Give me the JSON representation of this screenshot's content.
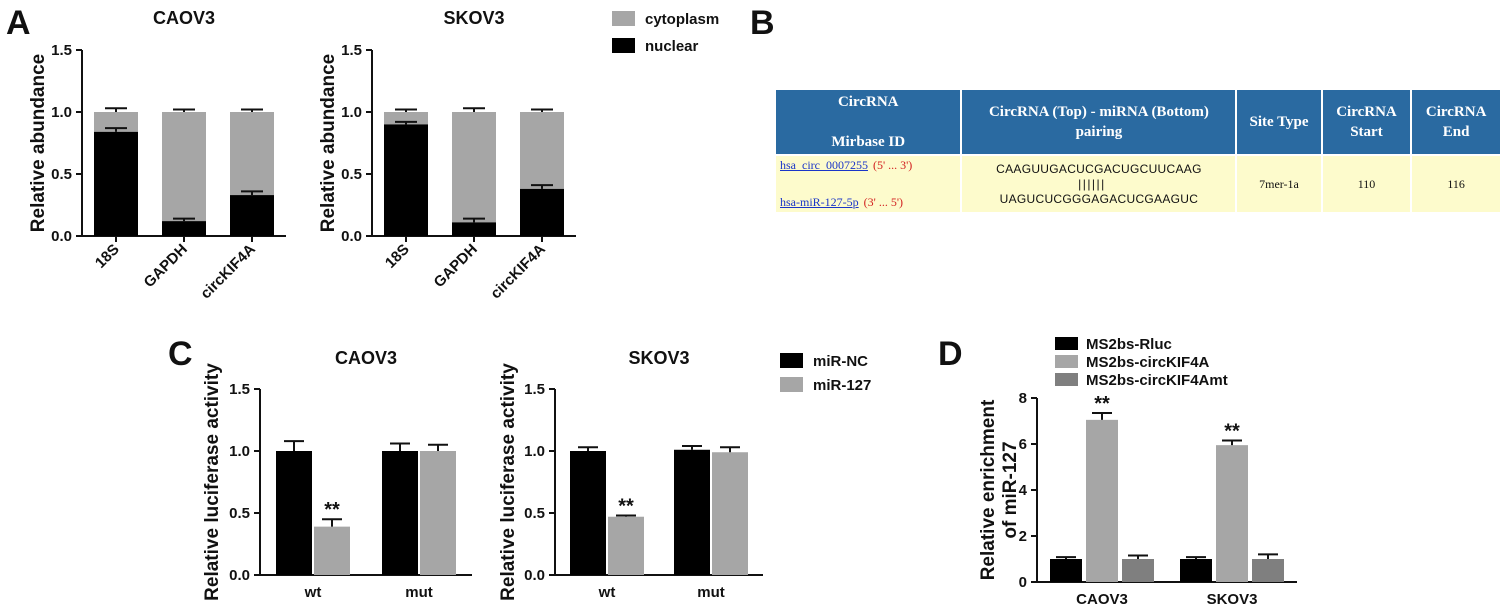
{
  "panels": {
    "A": "A",
    "B": "B",
    "C": "C",
    "D": "D"
  },
  "colors": {
    "black": "#000000",
    "gray": "#a6a6a6",
    "darkgray": "#7f7f7f",
    "table_header": "#2a6aa1",
    "table_cell": "#fdfbcc"
  },
  "legend_A": {
    "items": [
      "cytoplasm",
      "nuclear"
    ]
  },
  "legend_C": {
    "items": [
      "miR-NC",
      "miR-127"
    ]
  },
  "legend_D": {
    "items": [
      "MS2bs-Rluc",
      "MS2bs-circKIF4A",
      "MS2bs-circKIF4Amt"
    ]
  },
  "table_B": {
    "headers": [
      [
        "CircRNA",
        "Mirbase ID"
      ],
      [
        "CircRNA (Top) - miRNA (Bottom)",
        "pairing"
      ],
      [
        "Site Type"
      ],
      [
        "CircRNA",
        "Start"
      ],
      [
        "CircRNA",
        "End"
      ]
    ],
    "row": {
      "circ_name": "hsa_circ_0007255",
      "circ_dir": "(5' ... 3')",
      "mir_name": "hsa-miR-127-5p",
      "mir_dir": "(3' ... 5')",
      "top_seq": "CAAGUUGACUCGACUGCUUCAAG",
      "pairing": "||||||",
      "bottom_seq": "UAGUCUCGGGAGACUCGAAGUC",
      "site_type": "7mer-1a",
      "start": "110",
      "end": "116"
    }
  },
  "chart_data": [
    {
      "panel": "A",
      "type": "bar",
      "stacked": true,
      "title": "CAOV3",
      "ylabel": "Relative abundance",
      "ylim": [
        0,
        1.5
      ],
      "yticks": [
        "0.0",
        "0.5",
        "1.0",
        "1.5"
      ],
      "categories": [
        "18S",
        "GAPDH",
        "circKIF4A"
      ],
      "series": [
        {
          "name": "nuclear",
          "values": [
            0.84,
            0.12,
            0.33
          ],
          "error": [
            0.03,
            0.02,
            0.03
          ]
        },
        {
          "name": "cytoplasm",
          "values": [
            0.16,
            0.88,
            0.67
          ],
          "error": [
            0.03,
            0.02,
            0.02
          ]
        }
      ]
    },
    {
      "panel": "A",
      "type": "bar",
      "stacked": true,
      "title": "SKOV3",
      "ylabel": "Relative abundance",
      "ylim": [
        0,
        1.5
      ],
      "yticks": [
        "0.0",
        "0.5",
        "1.0",
        "1.5"
      ],
      "categories": [
        "18S",
        "GAPDH",
        "circKIF4A"
      ],
      "series": [
        {
          "name": "nuclear",
          "values": [
            0.9,
            0.11,
            0.38
          ],
          "error": [
            0.02,
            0.03,
            0.03
          ]
        },
        {
          "name": "cytoplasm",
          "values": [
            0.1,
            0.89,
            0.62
          ],
          "error": [
            0.02,
            0.03,
            0.02
          ]
        }
      ]
    },
    {
      "panel": "C",
      "type": "bar",
      "title": "CAOV3",
      "ylabel": "Relative luciferase activity",
      "ylim": [
        0,
        1.5
      ],
      "yticks": [
        "0.0",
        "0.5",
        "1.0",
        "1.5"
      ],
      "categories": [
        "wt",
        "mut"
      ],
      "series": [
        {
          "name": "miR-NC",
          "values": [
            1.0,
            1.0
          ],
          "error": [
            0.08,
            0.06
          ]
        },
        {
          "name": "miR-127",
          "values": [
            0.39,
            1.0
          ],
          "error": [
            0.06,
            0.05
          ]
        }
      ],
      "annotations": [
        {
          "category": "wt",
          "series": "miR-127",
          "text": "**"
        }
      ]
    },
    {
      "panel": "C",
      "type": "bar",
      "title": "SKOV3",
      "ylabel": "Relative luciferase activity",
      "ylim": [
        0,
        1.5
      ],
      "yticks": [
        "0.0",
        "0.5",
        "1.0",
        "1.5"
      ],
      "categories": [
        "wt",
        "mut"
      ],
      "series": [
        {
          "name": "miR-NC",
          "values": [
            1.0,
            1.01
          ],
          "error": [
            0.03,
            0.03
          ]
        },
        {
          "name": "miR-127",
          "values": [
            0.47,
            0.99
          ],
          "error": [
            0.01,
            0.04
          ]
        }
      ],
      "annotations": [
        {
          "category": "wt",
          "series": "miR-127",
          "text": "**"
        }
      ]
    },
    {
      "panel": "D",
      "type": "bar",
      "title": "",
      "ylabel": "Relative enrichment of miR-127",
      "ylabel_lines": [
        "Relative enrichment",
        "of miR-127"
      ],
      "ylim": [
        0,
        8
      ],
      "yticks": [
        "0",
        "2",
        "4",
        "6",
        "8"
      ],
      "categories": [
        "CAOV3",
        "SKOV3"
      ],
      "series": [
        {
          "name": "MS2bs-Rluc",
          "values": [
            1.0,
            1.0
          ],
          "error": [
            0.08,
            0.08
          ]
        },
        {
          "name": "MS2bs-circKIF4A",
          "values": [
            7.05,
            5.95
          ],
          "error": [
            0.3,
            0.2
          ]
        },
        {
          "name": "MS2bs-circKIF4Amt",
          "values": [
            1.0,
            1.0
          ],
          "error": [
            0.15,
            0.2
          ]
        }
      ],
      "annotations": [
        {
          "category": "CAOV3",
          "series": "MS2bs-circKIF4A",
          "text": "**"
        },
        {
          "category": "SKOV3",
          "series": "MS2bs-circKIF4A",
          "text": "**"
        }
      ]
    }
  ]
}
